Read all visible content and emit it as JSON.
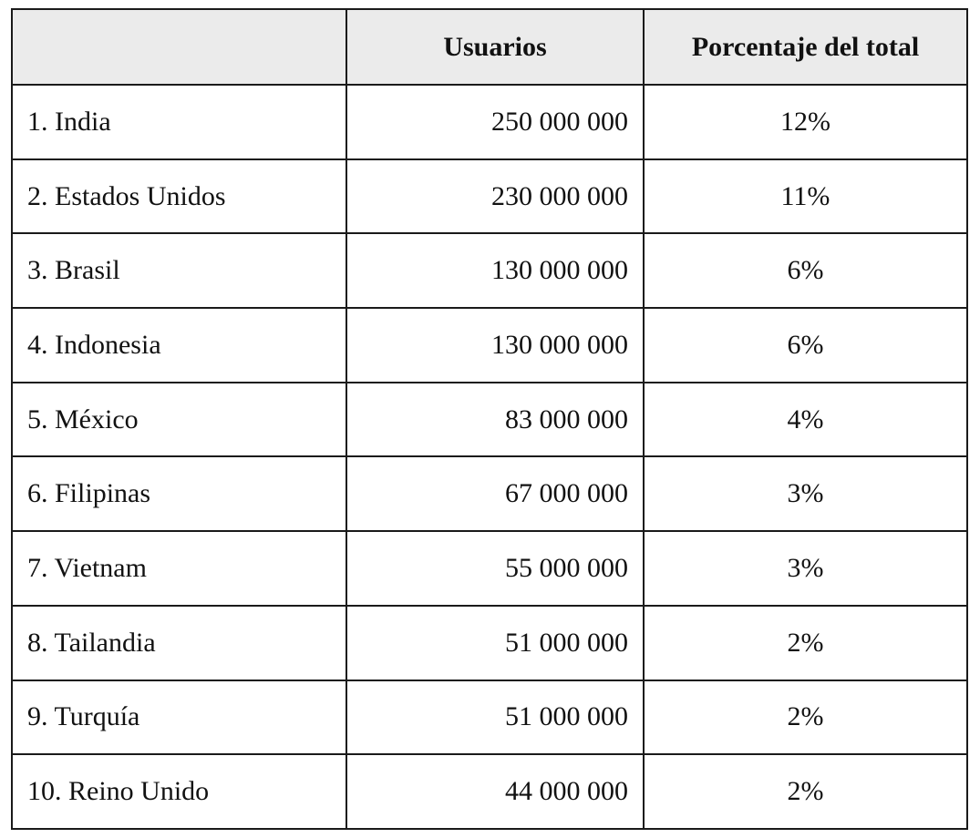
{
  "table": {
    "headers": {
      "country": "",
      "users": "Usuarios",
      "percentage": "Porcentaje del total"
    },
    "rows": [
      {
        "country": "1. India",
        "users": "250 000 000",
        "percentage": "12%"
      },
      {
        "country": "2. Estados Unidos",
        "users": "230 000 000",
        "percentage": "11%"
      },
      {
        "country": "3. Brasil",
        "users": "130 000 000",
        "percentage": "6%"
      },
      {
        "country": "4. Indonesia",
        "users": "130 000 000",
        "percentage": "6%"
      },
      {
        "country": "5. México",
        "users": "83 000 000",
        "percentage": "4%"
      },
      {
        "country": "6. Filipinas",
        "users": "67 000 000",
        "percentage": "3%"
      },
      {
        "country": "7. Vietnam",
        "users": "55 000 000",
        "percentage": "3%"
      },
      {
        "country": "8. Tailandia",
        "users": "51 000 000",
        "percentage": "2%"
      },
      {
        "country": "9. Turquía",
        "users": "51 000 000",
        "percentage": "2%"
      },
      {
        "country": "10. Reino Unido",
        "users": "44 000 000",
        "percentage": "2%"
      }
    ]
  },
  "colors": {
    "header_background": "#ebebeb",
    "border": "#1a1a1a",
    "text": "#111111"
  }
}
